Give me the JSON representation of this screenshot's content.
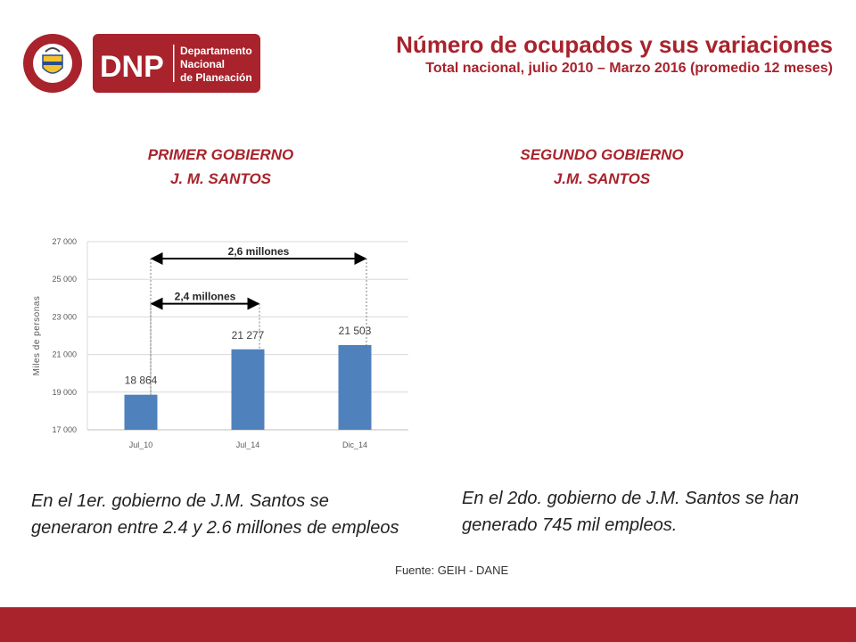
{
  "header": {
    "title": "Número de ocupados y sus variaciones",
    "subtitle": "Total nacional, julio 2010 – Marzo 2016 (promedio 12 meses)"
  },
  "logo": {
    "acronym": "DNP",
    "line1": "Departamento",
    "line2": "Nacional",
    "line3": "de Planeación",
    "seal_text": "REPÚBLICA DE COLOMBIA"
  },
  "governments": {
    "first": {
      "line1": "PRIMER GOBIERNO",
      "line2": "J. M. SANTOS"
    },
    "second": {
      "line1": "SEGUNDO GOBIERNO",
      "line2": "J.M. SANTOS"
    }
  },
  "chart_data": {
    "type": "bar",
    "categories": [
      "Jul_10",
      "Jul_14",
      "Dic_14"
    ],
    "values": [
      18864,
      21277,
      21503
    ],
    "value_labels": [
      "18 864",
      "21 277",
      "21 503"
    ],
    "ylabel": "Miles de personas",
    "ylim": [
      17000,
      27000
    ],
    "yticks": [
      17000,
      19000,
      21000,
      23000,
      25000,
      27000
    ],
    "ytick_labels": [
      "17 000",
      "19 000",
      "21 000",
      "23 000",
      "25 000",
      "27 000"
    ],
    "grid": true,
    "bar_color": "#4f81bd",
    "annotations": [
      {
        "text": "2,6 millones",
        "from": "Jul_10",
        "to": "Dic_14",
        "y": 26100
      },
      {
        "text": "2,4 millones",
        "from": "Jul_10",
        "to": "Jul_14",
        "y": 23700
      }
    ]
  },
  "notes": {
    "first": "En el 1er. gobierno de J.M. Santos se generaron entre 2.4 y 2.6 millones de empleos",
    "second": "En el 2do. gobierno de J.M. Santos se han generado 745 mil empleos."
  },
  "source": "Fuente: GEIH - DANE",
  "colors": {
    "brand": "#a8232c",
    "bar": "#4f81bd"
  }
}
